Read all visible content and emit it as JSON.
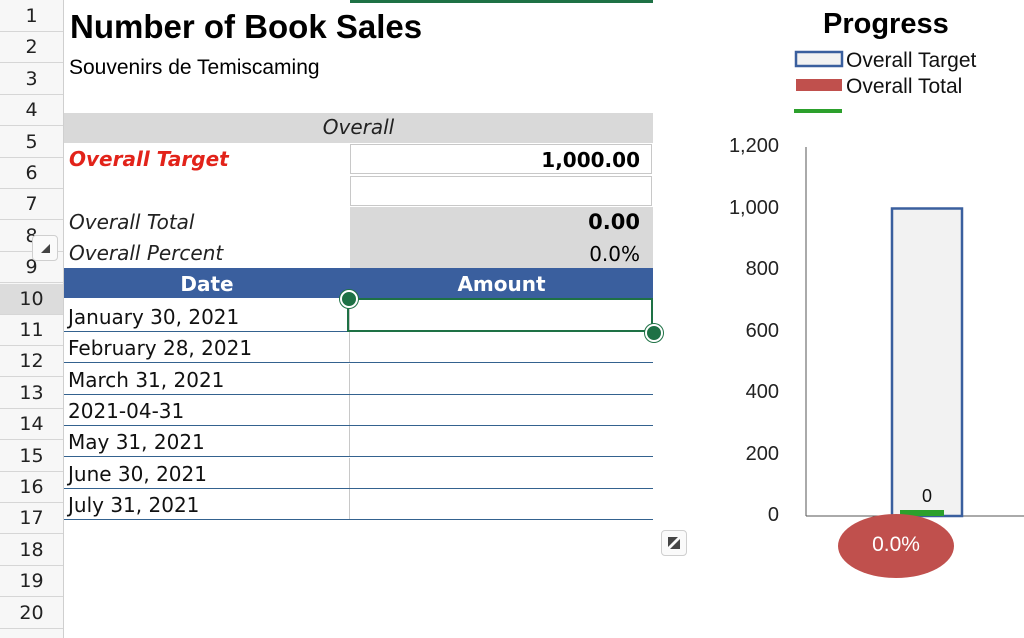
{
  "sheet": {
    "row_numbers": [
      "1",
      "2",
      "3",
      "4",
      "5",
      "6",
      "7",
      "8",
      "9",
      "10",
      "11",
      "12",
      "13",
      "14",
      "15",
      "16",
      "17",
      "18",
      "19",
      "20"
    ],
    "selected_row": "10",
    "title": "Number of Book Sales",
    "subtitle": "Souvenirs de Temiscaming",
    "section_header": "Overall",
    "overall_target_label": "Overall Target",
    "overall_target_value": "1,000.00",
    "overall_total_label": "Overall Total",
    "overall_total_value": "0.00",
    "overall_percent_label": "Overall Percent",
    "overall_percent_value": "0.0%",
    "table": {
      "headers": [
        "Date",
        "Amount"
      ],
      "rows": [
        {
          "date": "January 30, 2021",
          "amount": ""
        },
        {
          "date": "February 28, 2021",
          "amount": ""
        },
        {
          "date": "March 31, 2021",
          "amount": ""
        },
        {
          "date": "2021-04-31",
          "amount": ""
        },
        {
          "date": "May 31, 2021",
          "amount": ""
        },
        {
          "date": "June 30, 2021",
          "amount": ""
        },
        {
          "date": "July 31, 2021",
          "amount": ""
        }
      ]
    }
  },
  "chart_data": {
    "type": "bar",
    "title": "Progress",
    "legend": [
      "Overall Target",
      "Overall Total"
    ],
    "legend_placement": "top-right",
    "series": [
      {
        "name": "Overall Target",
        "values": [
          1000
        ]
      },
      {
        "name": "Overall Total",
        "values": [
          0
        ]
      }
    ],
    "yticks": [
      "0",
      "200",
      "400",
      "600",
      "800",
      "1,000",
      "1,200"
    ],
    "ylim": [
      0,
      1200
    ],
    "data_label": "0",
    "percent_label": "0.0%",
    "colors": {
      "target_outline": "#3a5f9e",
      "target_fill": "#f2f2f2",
      "total": "#c0504d",
      "marker": "#2ca02c",
      "percent_bubble": "#c0504d"
    }
  },
  "colors": {
    "header_blue": "#3a5f9e",
    "band_gray": "#d9d9d9",
    "selection_green": "#1e7145",
    "target_red": "#e2231a"
  }
}
